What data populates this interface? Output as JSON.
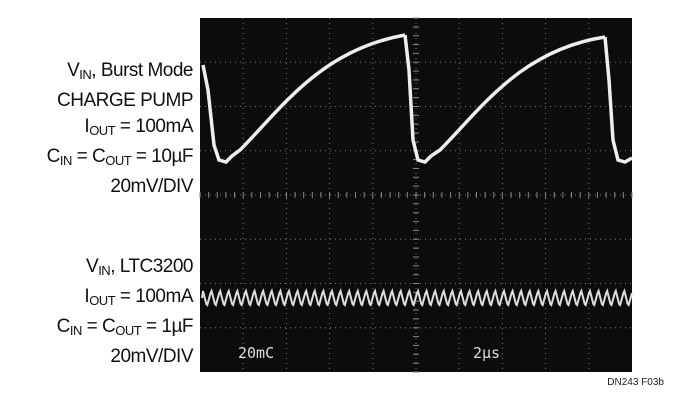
{
  "labels": [
    {
      "lines": [
        [
          {
            "t": "V"
          },
          {
            "s": "IN"
          },
          {
            "t": ", Burst Mode"
          }
        ],
        [
          {
            "t": "CHARGE PUMP"
          }
        ],
        [
          {
            "t": "I"
          },
          {
            "s": "OUT"
          },
          {
            "t": " = 100mA"
          }
        ],
        [
          {
            "t": "C"
          },
          {
            "s": "IN"
          },
          {
            "t": " = C"
          },
          {
            "s": "OUT"
          },
          {
            "t": " = 10µF"
          }
        ],
        [
          {
            "t": "20mV/DIV"
          }
        ]
      ]
    },
    {
      "lines": [
        [
          {
            "t": "V"
          },
          {
            "s": "IN"
          },
          {
            "t": ", LTC3200"
          }
        ],
        [
          {
            "t": "I"
          },
          {
            "s": "OUT"
          },
          {
            "t": " = 100mA"
          }
        ],
        [
          {
            "t": "C"
          },
          {
            "s": "IN"
          },
          {
            "t": " = C"
          },
          {
            "s": "OUT"
          },
          {
            "t": " = 1µF"
          }
        ],
        [
          {
            "t": "20mV/DIV"
          }
        ]
      ]
    }
  ],
  "screen": {
    "readouts": [
      "20mC",
      "2µs"
    ]
  },
  "footer": "DN243 F03b"
}
